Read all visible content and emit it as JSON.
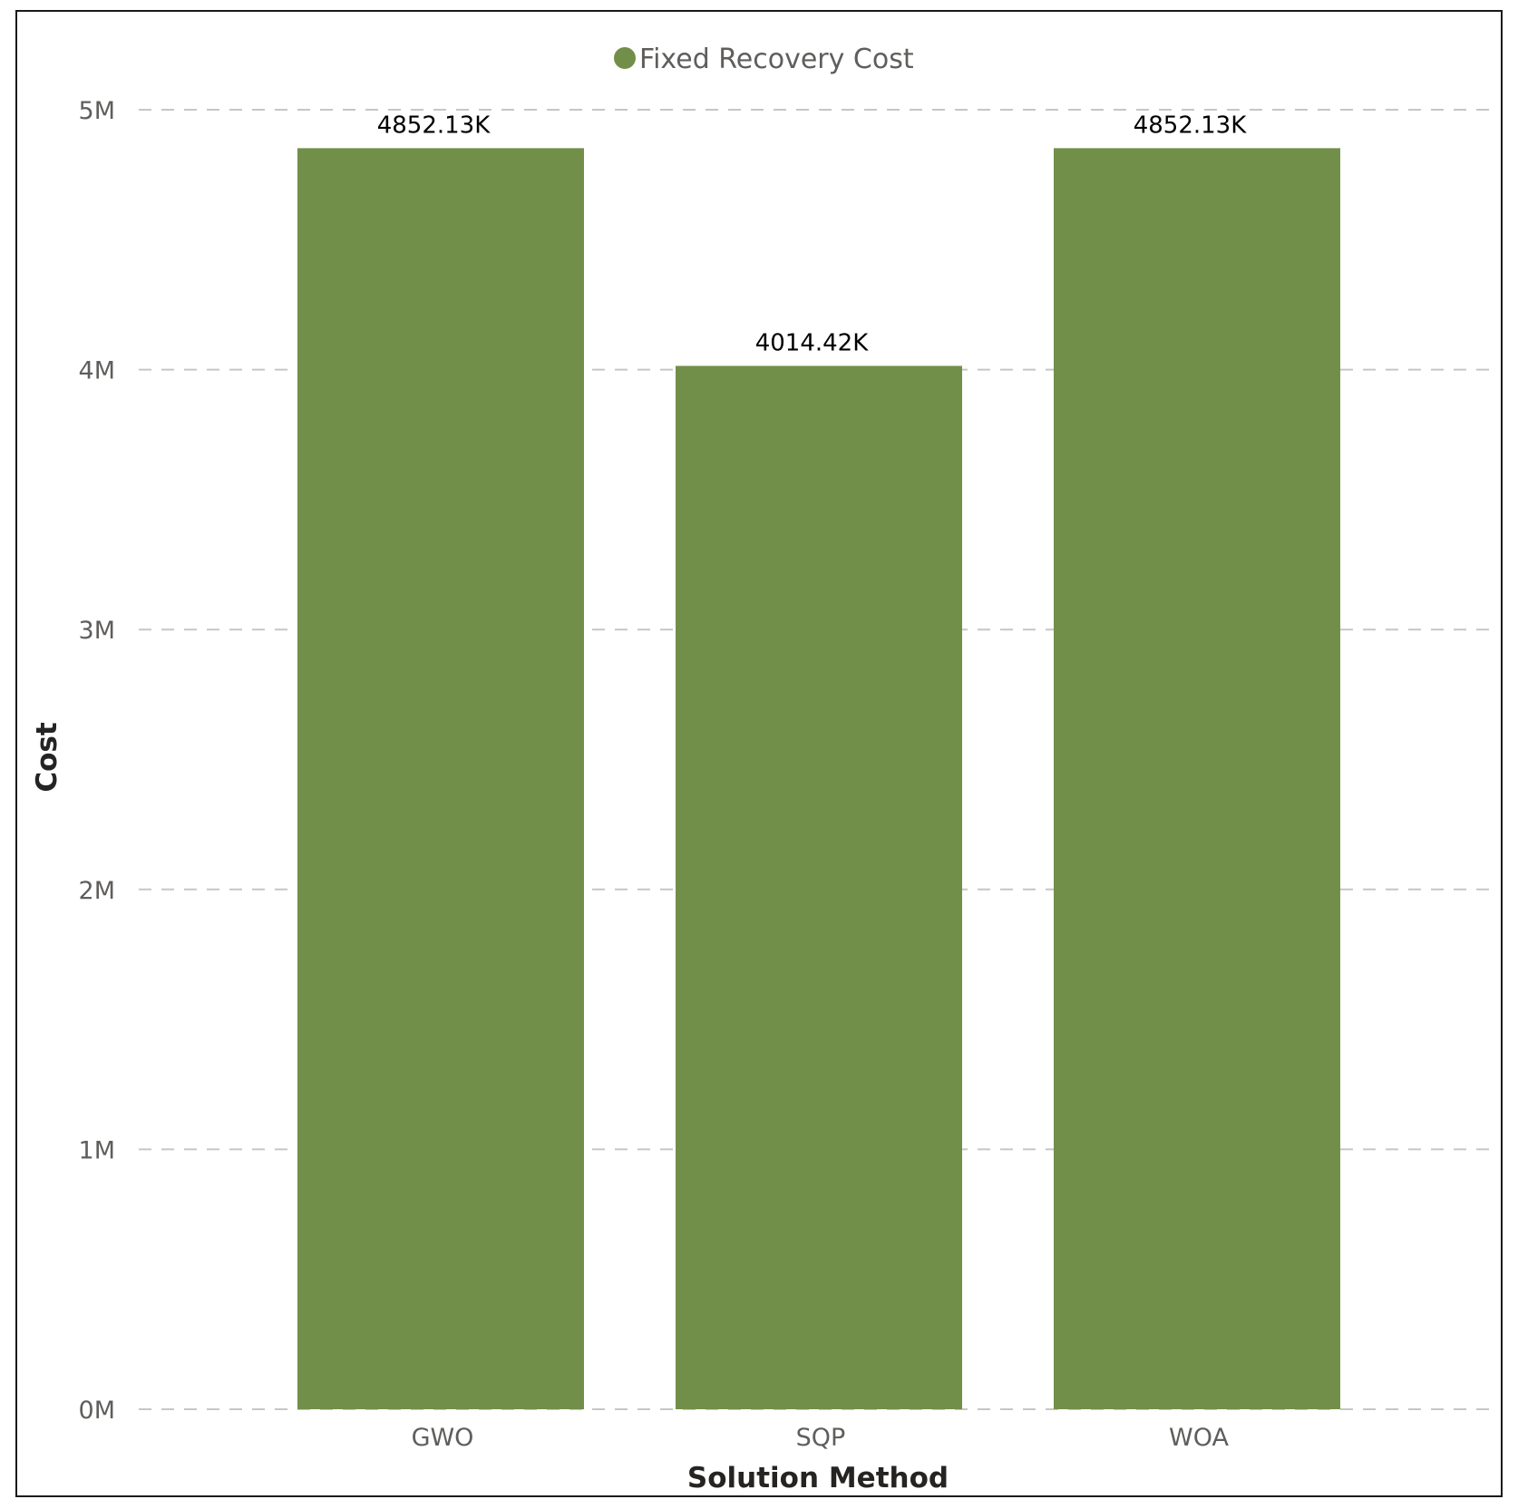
{
  "chart_data": {
    "type": "bar",
    "categories": [
      "GWO",
      "SQP",
      "WOA"
    ],
    "series": [
      {
        "name": "Fixed Recovery Cost",
        "values": [
          4852130,
          4014420,
          4852130
        ],
        "color": "#728F49"
      }
    ],
    "data_labels": [
      "4852.13K",
      "4014.42K",
      "4852.13K"
    ],
    "xlabel": "Solution Method",
    "ylabel": "Cost",
    "ylim": [
      0,
      5000000
    ],
    "yticks": [
      0,
      1000000,
      2000000,
      3000000,
      4000000,
      5000000
    ],
    "ytick_labels": [
      "0M",
      "1M",
      "2M",
      "3M",
      "4M",
      "5M"
    ],
    "grid": "horizontal dashed",
    "legend_position": "top-center"
  }
}
